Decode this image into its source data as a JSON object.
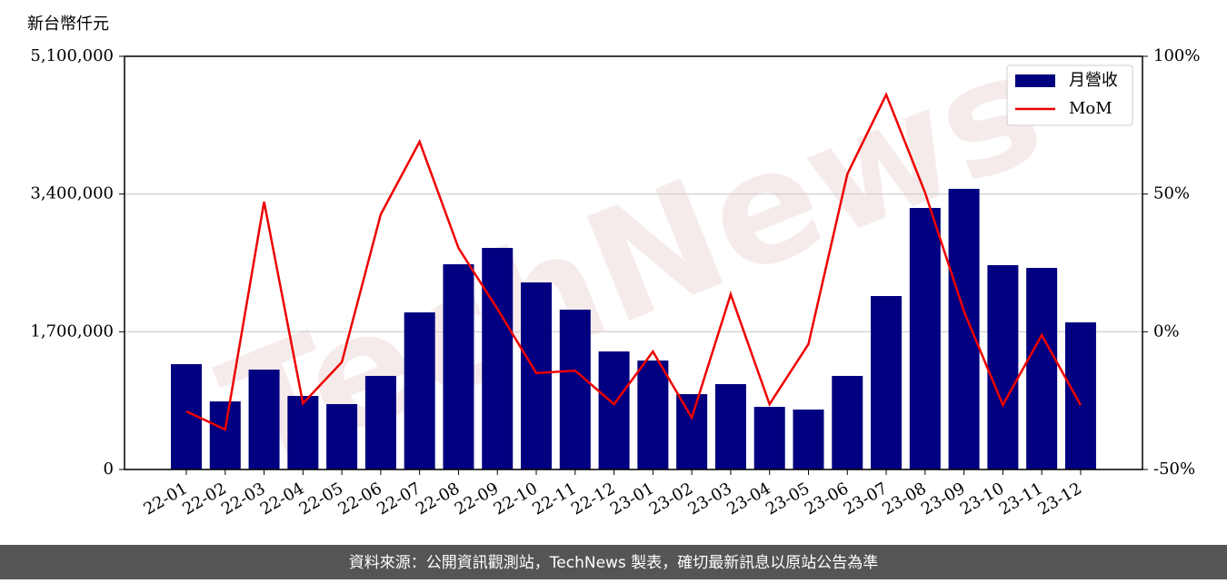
{
  "chart_data": {
    "type": "bar_line",
    "y_axis_label": "新台幣仟元",
    "categories": [
      "22-01",
      "22-02",
      "22-03",
      "22-04",
      "22-05",
      "22-06",
      "22-07",
      "22-08",
      "22-09",
      "22-10",
      "22-11",
      "22-12",
      "23-01",
      "23-02",
      "23-03",
      "23-04",
      "23-05",
      "23-06",
      "23-07",
      "23-08",
      "23-09",
      "23-10",
      "23-11",
      "23-12"
    ],
    "series": [
      {
        "name": "月營收",
        "type": "bar",
        "color": "#000080",
        "values": [
          1300000,
          840000,
          1233000,
          908000,
          807000,
          1155000,
          1939000,
          2533000,
          2735000,
          2309000,
          1973000,
          1457000,
          1345000,
          930000,
          1054000,
          773000,
          740000,
          1155000,
          2141000,
          3228000,
          3464000,
          2522000,
          2488000,
          1816000
        ]
      },
      {
        "name": "MoM",
        "type": "line",
        "axis": "y2",
        "color": "#ee0000",
        "values": [
          -28.9,
          -35.5,
          47.2,
          -26,
          -11,
          42.6,
          69,
          30.4,
          8.3,
          -15,
          -14.1,
          -26.3,
          -7.2,
          -31.2,
          13.6,
          -26.3,
          -4.5,
          57.2,
          86.1,
          50.5,
          7.4,
          -26.6,
          -1.2,
          -26.6
        ]
      }
    ],
    "ylim": [
      0,
      5100000
    ],
    "yticks": [
      0,
      {
        "value": 1700000,
        "label": "1,700,000"
      },
      {
        "value": 3400000,
        "label": "3,400,000"
      },
      {
        "value": 5100000,
        "label": "5,100,000"
      }
    ],
    "y2lim": [
      -50,
      100
    ],
    "y2ticks": [
      {
        "value": -50,
        "label": "-50%"
      },
      {
        "value": 0,
        "label": "0%"
      },
      {
        "value": 50,
        "label": "50%"
      },
      {
        "value": 100,
        "label": "100%"
      }
    ],
    "grid": true,
    "legend": "upper right",
    "watermark": "TechNews",
    "source": "資料來源：公開資訊觀測站，TechNews 製表，確切最新訊息以原站公告為準"
  }
}
